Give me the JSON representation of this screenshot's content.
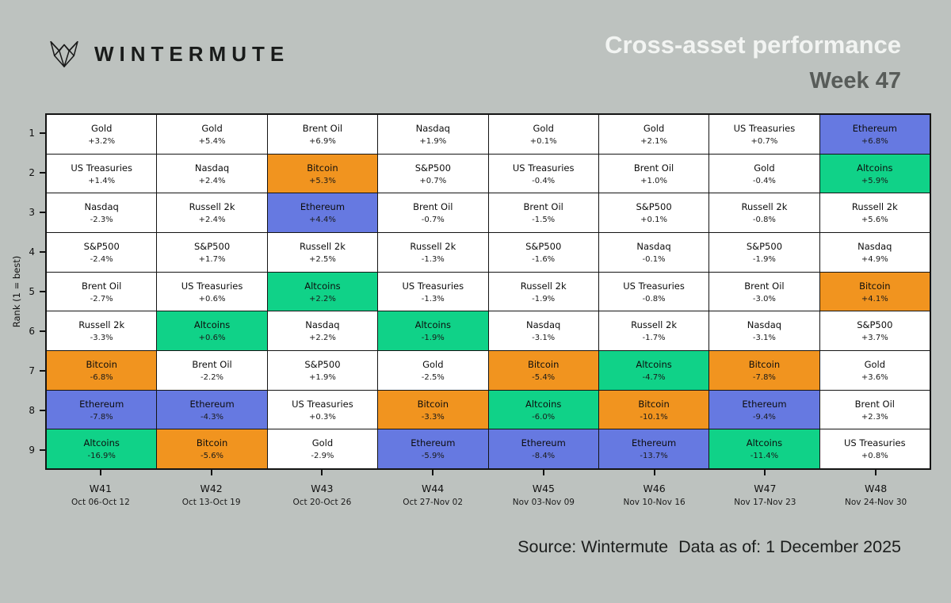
{
  "background": "#BDC2BF",
  "logo": {
    "brand": "WINTERMUTE"
  },
  "header": {
    "title": "Cross-asset performance",
    "subtitle": "Week 47"
  },
  "footer": {
    "source": "Source: Wintermute",
    "data_as_of": "Data as of: 1 December 2025"
  },
  "chart_data": {
    "type": "table",
    "description": "Weekly cross-asset performance ranking grid. Rows are ranks 1-9 (1 = best), columns are weeks W41-W48. Each cell shows the asset and its weekly % change. Bitcoin cells are orange, Ethereum blue, Altcoins green, all other assets white.",
    "title": "Cross-asset performance",
    "subtitle": "Week 47",
    "ylabel": "Rank (1 = best)",
    "ranks": [
      "1",
      "2",
      "3",
      "4",
      "5",
      "6",
      "7",
      "8",
      "9"
    ],
    "grid": true,
    "asset_colors": {
      "Bitcoin": "#F1941F",
      "Ethereum": "#6679E1",
      "Altcoins": "#10D288",
      "default": "#FFFFFF"
    },
    "weeks": [
      {
        "label": "W41",
        "dates": "Oct 06-Oct 12",
        "ranking": [
          {
            "asset": "Gold",
            "change": "+3.2%"
          },
          {
            "asset": "US Treasuries",
            "change": "+1.4%"
          },
          {
            "asset": "Nasdaq",
            "change": "-2.3%"
          },
          {
            "asset": "S&P500",
            "change": "-2.4%"
          },
          {
            "asset": "Brent Oil",
            "change": "-2.7%"
          },
          {
            "asset": "Russell 2k",
            "change": "-3.3%"
          },
          {
            "asset": "Bitcoin",
            "change": "-6.8%"
          },
          {
            "asset": "Ethereum",
            "change": "-7.8%"
          },
          {
            "asset": "Altcoins",
            "change": "-16.9%"
          }
        ]
      },
      {
        "label": "W42",
        "dates": "Oct 13-Oct 19",
        "ranking": [
          {
            "asset": "Gold",
            "change": "+5.4%"
          },
          {
            "asset": "Nasdaq",
            "change": "+2.4%"
          },
          {
            "asset": "Russell 2k",
            "change": "+2.4%"
          },
          {
            "asset": "S&P500",
            "change": "+1.7%"
          },
          {
            "asset": "US Treasuries",
            "change": "+0.6%"
          },
          {
            "asset": "Altcoins",
            "change": "+0.6%"
          },
          {
            "asset": "Brent Oil",
            "change": "-2.2%"
          },
          {
            "asset": "Ethereum",
            "change": "-4.3%"
          },
          {
            "asset": "Bitcoin",
            "change": "-5.6%"
          }
        ]
      },
      {
        "label": "W43",
        "dates": "Oct 20-Oct 26",
        "ranking": [
          {
            "asset": "Brent Oil",
            "change": "+6.9%"
          },
          {
            "asset": "Bitcoin",
            "change": "+5.3%"
          },
          {
            "asset": "Ethereum",
            "change": "+4.4%"
          },
          {
            "asset": "Russell 2k",
            "change": "+2.5%"
          },
          {
            "asset": "Altcoins",
            "change": "+2.2%"
          },
          {
            "asset": "Nasdaq",
            "change": "+2.2%"
          },
          {
            "asset": "S&P500",
            "change": "+1.9%"
          },
          {
            "asset": "US Treasuries",
            "change": "+0.3%"
          },
          {
            "asset": "Gold",
            "change": "-2.9%"
          }
        ]
      },
      {
        "label": "W44",
        "dates": "Oct 27-Nov 02",
        "ranking": [
          {
            "asset": "Nasdaq",
            "change": "+1.9%"
          },
          {
            "asset": "S&P500",
            "change": "+0.7%"
          },
          {
            "asset": "Brent Oil",
            "change": "-0.7%"
          },
          {
            "asset": "Russell 2k",
            "change": "-1.3%"
          },
          {
            "asset": "US Treasuries",
            "change": "-1.3%"
          },
          {
            "asset": "Altcoins",
            "change": "-1.9%"
          },
          {
            "asset": "Gold",
            "change": "-2.5%"
          },
          {
            "asset": "Bitcoin",
            "change": "-3.3%"
          },
          {
            "asset": "Ethereum",
            "change": "-5.9%"
          }
        ]
      },
      {
        "label": "W45",
        "dates": "Nov 03-Nov 09",
        "ranking": [
          {
            "asset": "Gold",
            "change": "+0.1%"
          },
          {
            "asset": "US Treasuries",
            "change": "-0.4%"
          },
          {
            "asset": "Brent Oil",
            "change": "-1.5%"
          },
          {
            "asset": "S&P500",
            "change": "-1.6%"
          },
          {
            "asset": "Russell 2k",
            "change": "-1.9%"
          },
          {
            "asset": "Nasdaq",
            "change": "-3.1%"
          },
          {
            "asset": "Bitcoin",
            "change": "-5.4%"
          },
          {
            "asset": "Altcoins",
            "change": "-6.0%"
          },
          {
            "asset": "Ethereum",
            "change": "-8.4%"
          }
        ]
      },
      {
        "label": "W46",
        "dates": "Nov 10-Nov 16",
        "ranking": [
          {
            "asset": "Gold",
            "change": "+2.1%"
          },
          {
            "asset": "Brent Oil",
            "change": "+1.0%"
          },
          {
            "asset": "S&P500",
            "change": "+0.1%"
          },
          {
            "asset": "Nasdaq",
            "change": "-0.1%"
          },
          {
            "asset": "US Treasuries",
            "change": "-0.8%"
          },
          {
            "asset": "Russell 2k",
            "change": "-1.7%"
          },
          {
            "asset": "Altcoins",
            "change": "-4.7%"
          },
          {
            "asset": "Bitcoin",
            "change": "-10.1%"
          },
          {
            "asset": "Ethereum",
            "change": "-13.7%"
          }
        ]
      },
      {
        "label": "W47",
        "dates": "Nov 17-Nov 23",
        "ranking": [
          {
            "asset": "US Treasuries",
            "change": "+0.7%"
          },
          {
            "asset": "Gold",
            "change": "-0.4%"
          },
          {
            "asset": "Russell 2k",
            "change": "-0.8%"
          },
          {
            "asset": "S&P500",
            "change": "-1.9%"
          },
          {
            "asset": "Brent Oil",
            "change": "-3.0%"
          },
          {
            "asset": "Nasdaq",
            "change": "-3.1%"
          },
          {
            "asset": "Bitcoin",
            "change": "-7.8%"
          },
          {
            "asset": "Ethereum",
            "change": "-9.4%"
          },
          {
            "asset": "Altcoins",
            "change": "-11.4%"
          }
        ]
      },
      {
        "label": "W48",
        "dates": "Nov 24-Nov 30",
        "ranking": [
          {
            "asset": "Ethereum",
            "change": "+6.8%"
          },
          {
            "asset": "Altcoins",
            "change": "+5.9%"
          },
          {
            "asset": "Russell 2k",
            "change": "+5.6%"
          },
          {
            "asset": "Nasdaq",
            "change": "+4.9%"
          },
          {
            "asset": "Bitcoin",
            "change": "+4.1%"
          },
          {
            "asset": "S&P500",
            "change": "+3.7%"
          },
          {
            "asset": "Gold",
            "change": "+3.6%"
          },
          {
            "asset": "Brent Oil",
            "change": "+2.3%"
          },
          {
            "asset": "US Treasuries",
            "change": "+0.8%"
          }
        ]
      }
    ]
  }
}
